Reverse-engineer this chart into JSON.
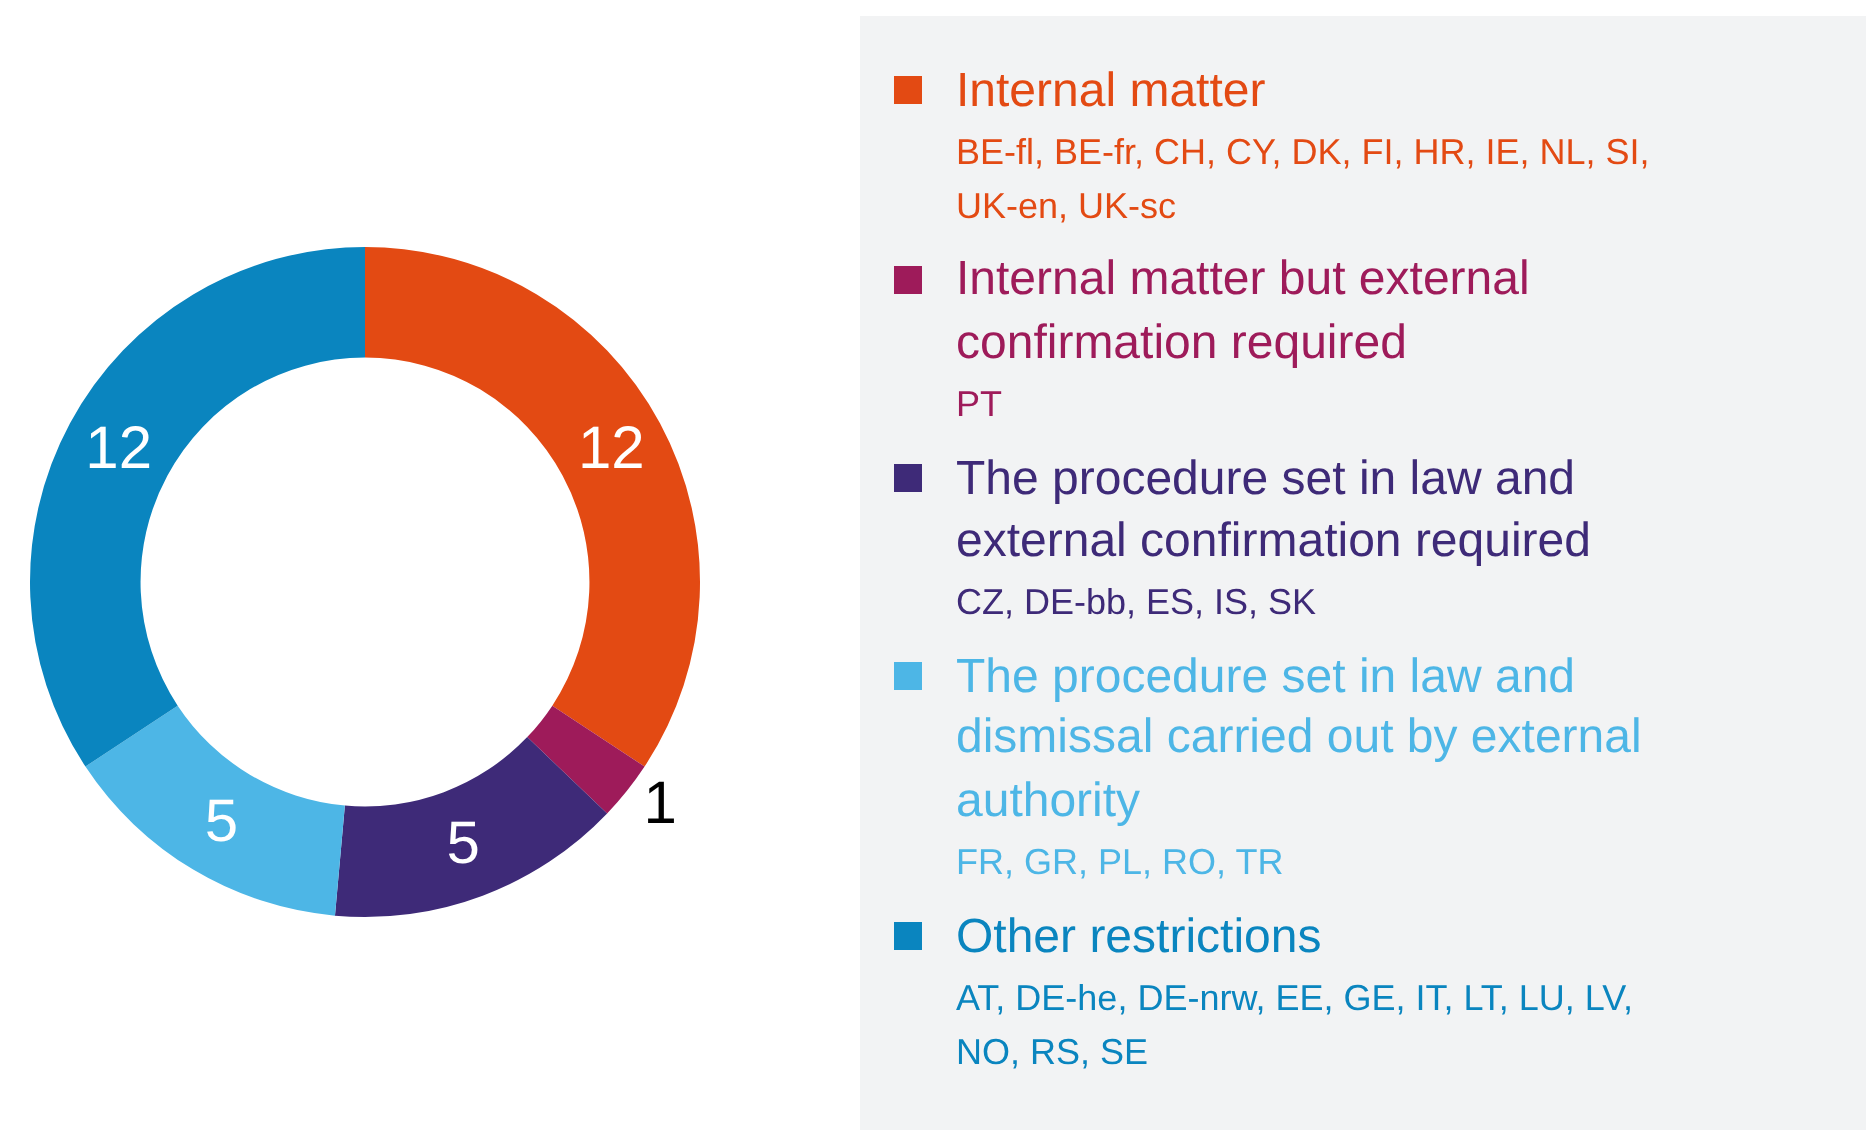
{
  "chart_data": {
    "type": "donut",
    "categories": [
      "Internal matter",
      "Internal matter but external confirmation required",
      "The procedure set in law and external confirmation required",
      "The procedure set in law and dismissal carried out by external authority",
      "Other restrictions"
    ],
    "values": [
      12,
      1,
      5,
      5,
      12
    ],
    "colors": [
      "#e34a13",
      "#9e1b5a",
      "#3e2a78",
      "#4db6e6",
      "#0a85bf"
    ],
    "data_labels": true,
    "legend": "right",
    "annotations": [
      "BE-fl, BE-fr, CH, CY, DK, FI, HR, IE, NL, SI, UK-en, UK-sc",
      "PT",
      "CZ, DE-bb, ES, IS, SK",
      "FR, GR, PL, RO, TR",
      "AT, DE-he, DE-nrw, EE, GE, IT, LT, LU, LV, NO, RS, SE"
    ]
  }
}
